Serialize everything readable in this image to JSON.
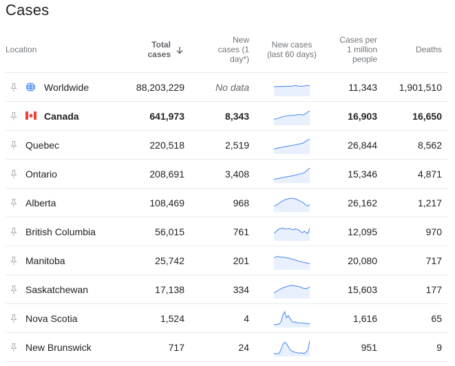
{
  "title": "Cases",
  "columns": {
    "location": "Location",
    "total_cases": [
      "Total",
      "cases"
    ],
    "new_cases": [
      "New",
      "cases (1",
      "day*)"
    ],
    "new_cases_60": [
      "New cases",
      "(last 60 days)"
    ],
    "per_million": [
      "Cases per",
      "1 million",
      "people"
    ],
    "deaths": "Deaths"
  },
  "icons": {
    "pin": "pin-icon",
    "globe": "globe-icon",
    "flag": "canada-flag-icon",
    "sort": "arrow-down-icon"
  },
  "colors": {
    "spark_line": "#4285f4",
    "spark_fill": "#e8f0fe",
    "flag_red": "#ea4335",
    "globe": "#4285f4",
    "divider": "#e8eaed"
  },
  "rows": [
    {
      "location": "Worldwide",
      "total": "88,203,229",
      "new": "No data",
      "per_million": "11,343",
      "deaths": "1,901,510",
      "icon": "globe",
      "bold": false,
      "spark": [
        0.55,
        0.55,
        0.56,
        0.55,
        0.56,
        0.57,
        0.56,
        0.57,
        0.58,
        0.57,
        0.58,
        0.6,
        0.62,
        0.6,
        0.58,
        0.57,
        0.58,
        0.6,
        0.63,
        0.62,
        0.6
      ]
    },
    {
      "location": "Canada",
      "total": "641,973",
      "new": "8,343",
      "per_million": "16,903",
      "deaths": "16,650",
      "icon": "flag",
      "bold": true,
      "spark": [
        0.3,
        0.33,
        0.36,
        0.4,
        0.44,
        0.48,
        0.5,
        0.52,
        0.54,
        0.55,
        0.56,
        0.57,
        0.58,
        0.6,
        0.62,
        0.6,
        0.58,
        0.62,
        0.7,
        0.8,
        0.85
      ]
    },
    {
      "location": "Quebec",
      "total": "220,518",
      "new": "2,519",
      "per_million": "26,844",
      "deaths": "8,562",
      "icon": "",
      "bold": false,
      "spark": [
        0.25,
        0.28,
        0.3,
        0.33,
        0.35,
        0.38,
        0.4,
        0.42,
        0.44,
        0.46,
        0.48,
        0.5,
        0.52,
        0.55,
        0.58,
        0.6,
        0.62,
        0.7,
        0.78,
        0.85,
        0.88
      ]
    },
    {
      "location": "Ontario",
      "total": "208,691",
      "new": "3,408",
      "per_million": "15,346",
      "deaths": "4,871",
      "icon": "",
      "bold": false,
      "spark": [
        0.15,
        0.18,
        0.2,
        0.22,
        0.25,
        0.27,
        0.3,
        0.32,
        0.34,
        0.36,
        0.38,
        0.4,
        0.44,
        0.46,
        0.5,
        0.52,
        0.55,
        0.6,
        0.7,
        0.8,
        0.9
      ]
    },
    {
      "location": "Alberta",
      "total": "108,469",
      "new": "968",
      "per_million": "26,162",
      "deaths": "1,217",
      "icon": "",
      "bold": false,
      "spark": [
        0.3,
        0.35,
        0.4,
        0.5,
        0.58,
        0.64,
        0.7,
        0.74,
        0.78,
        0.8,
        0.82,
        0.8,
        0.76,
        0.72,
        0.66,
        0.6,
        0.55,
        0.45,
        0.35,
        0.3,
        0.4
      ]
    },
    {
      "location": "British Columbia",
      "total": "56,015",
      "new": "761",
      "per_million": "12,095",
      "deaths": "970",
      "icon": "",
      "bold": false,
      "spark": [
        0.4,
        0.5,
        0.62,
        0.7,
        0.72,
        0.75,
        0.7,
        0.68,
        0.72,
        0.7,
        0.66,
        0.64,
        0.7,
        0.66,
        0.6,
        0.5,
        0.45,
        0.55,
        0.45,
        0.4,
        0.75
      ]
    },
    {
      "location": "Manitoba",
      "total": "25,742",
      "new": "201",
      "per_million": "20,080",
      "deaths": "717",
      "icon": "",
      "bold": false,
      "spark": [
        0.7,
        0.74,
        0.78,
        0.76,
        0.72,
        0.74,
        0.72,
        0.68,
        0.7,
        0.64,
        0.6,
        0.58,
        0.56,
        0.5,
        0.48,
        0.45,
        0.4,
        0.38,
        0.36,
        0.34,
        0.32
      ]
    },
    {
      "location": "Saskatchewan",
      "total": "17,138",
      "new": "334",
      "per_million": "15,603",
      "deaths": "177",
      "icon": "",
      "bold": false,
      "spark": [
        0.3,
        0.35,
        0.42,
        0.5,
        0.56,
        0.62,
        0.66,
        0.7,
        0.74,
        0.76,
        0.78,
        0.76,
        0.74,
        0.72,
        0.7,
        0.66,
        0.6,
        0.58,
        0.56,
        0.6,
        0.7
      ]
    },
    {
      "location": "Nova Scotia",
      "total": "1,524",
      "new": "4",
      "per_million": "1,616",
      "deaths": "65",
      "icon": "",
      "bold": false,
      "spark": [
        0.1,
        0.1,
        0.12,
        0.15,
        0.3,
        0.75,
        0.95,
        0.55,
        0.7,
        0.5,
        0.3,
        0.25,
        0.28,
        0.22,
        0.2,
        0.22,
        0.18,
        0.2,
        0.16,
        0.18,
        0.15
      ]
    },
    {
      "location": "New Brunswick",
      "total": "717",
      "new": "24",
      "per_million": "951",
      "deaths": "9",
      "icon": "",
      "bold": false,
      "spark": [
        0.08,
        0.1,
        0.08,
        0.12,
        0.4,
        0.7,
        0.85,
        0.75,
        0.55,
        0.35,
        0.25,
        0.2,
        0.18,
        0.15,
        0.12,
        0.14,
        0.12,
        0.1,
        0.2,
        0.35,
        0.95
      ]
    }
  ]
}
